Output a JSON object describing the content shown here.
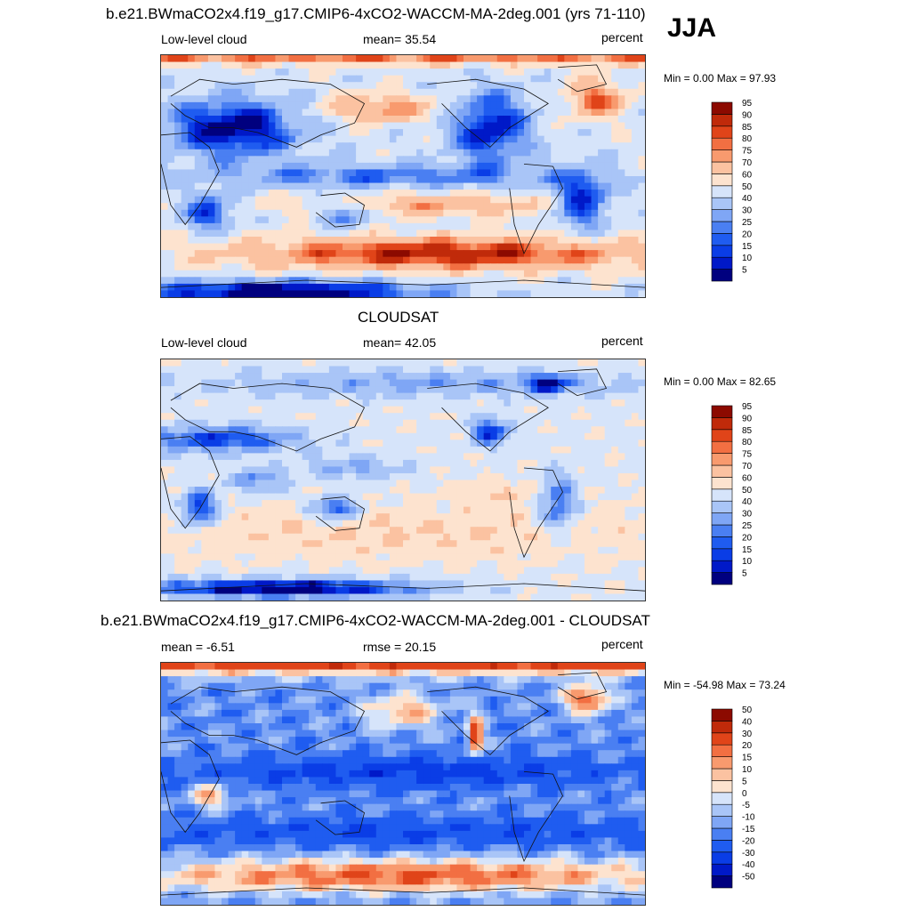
{
  "chart_data": [
    {
      "type": "heatmap",
      "title": "b.e21.BWmaCO2x4.f19_g17.CMIP6-4xCO2-WACCM-MA-2deg.001 (yrs 71-110)",
      "season": "JJA",
      "left_label": "Low-level cloud",
      "center_label": "mean=  35.54",
      "units": "percent",
      "min_max": "Min =   0.00 Max =  97.93",
      "min": 0.0,
      "max": 97.93,
      "mean": 35.54,
      "colorbar_levels": [
        "5",
        "10",
        "15",
        "20",
        "25",
        "30",
        "40",
        "50",
        "60",
        "70",
        "75",
        "80",
        "85",
        "90",
        "95"
      ]
    },
    {
      "type": "heatmap",
      "title": "CLOUDSAT",
      "left_label": "Low-level cloud",
      "center_label": "mean=  42.05",
      "units": "percent",
      "min_max": "Min =   0.00 Max =  82.65",
      "min": 0.0,
      "max": 82.65,
      "mean": 42.05,
      "colorbar_levels": [
        "5",
        "10",
        "15",
        "20",
        "25",
        "30",
        "40",
        "50",
        "60",
        "70",
        "75",
        "80",
        "85",
        "90",
        "95"
      ]
    },
    {
      "type": "heatmap",
      "title": "b.e21.BWmaCO2x4.f19_g17.CMIP6-4xCO2-WACCM-MA-2deg.001 - CLOUDSAT",
      "left_label": "mean =  -6.51",
      "center_label": "rmse =  20.15",
      "units": "percent",
      "min_max": "Min = -54.98 Max =  73.24",
      "min": -54.98,
      "max": 73.24,
      "mean": -6.51,
      "rmse": 20.15,
      "colorbar_levels": [
        "-50",
        "-40",
        "-30",
        "-20",
        "-15",
        "-10",
        "-5",
        "0",
        "5",
        "10",
        "15",
        "20",
        "30",
        "40",
        "50"
      ]
    }
  ],
  "colors": {
    "scale": [
      "#00007f",
      "#0019c8",
      "#0a3de6",
      "#1f5cf0",
      "#4a7ff2",
      "#7fa6f5",
      "#a9c5f7",
      "#d6e4fa",
      "#fde3cf",
      "#fbc2a1",
      "#f89a6e",
      "#f26f42",
      "#e04419",
      "#c02a0a",
      "#8c0a00"
    ]
  }
}
